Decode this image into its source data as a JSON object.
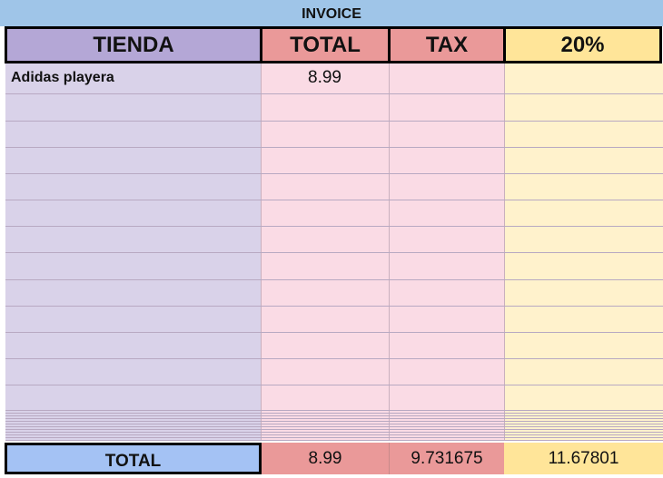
{
  "title": "INVOICE",
  "headers": {
    "tienda": "TIENDA",
    "total": "TOTAL",
    "tax": "TAX",
    "pct": "20%"
  },
  "rows": [
    {
      "tienda": "Adidas playera",
      "total": "8.99",
      "tax": "",
      "pct": ""
    }
  ],
  "totals": {
    "label": "TOTAL",
    "total": "8.99",
    "tax": "9.731675",
    "pct": "11.67801"
  },
  "colors": {
    "title": "#9fc5e8",
    "tienda_header": "#b4a7d6",
    "total_header": "#ea9999",
    "pct_header": "#ffe599",
    "total_label": "#a4c2f4"
  }
}
